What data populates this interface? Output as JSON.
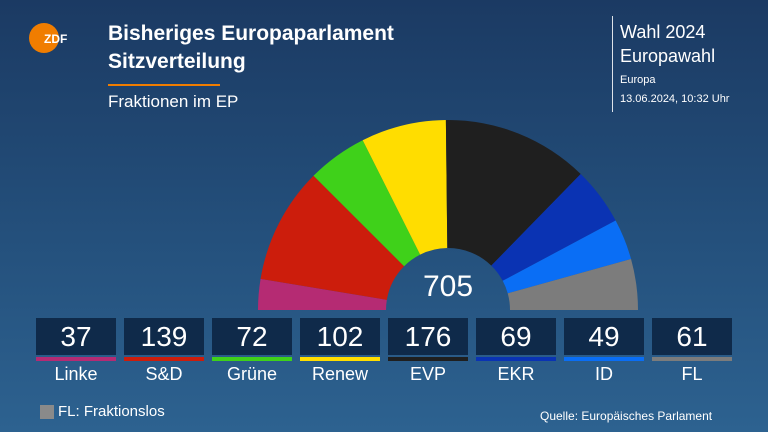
{
  "header": {
    "logo_text": "ZDF",
    "title_line1": "Bisheriges Europaparlament",
    "title_line2": "Sitzverteilung",
    "subtitle": "Fraktionen im EP",
    "election_line1": "Wahl 2024",
    "election_line2": "Europawahl",
    "region": "Europa",
    "timestamp": "13.06.2024, 10:32 Uhr"
  },
  "colors": {
    "accent": "#f07d00",
    "background": "#1b3a63",
    "box": "#0f2a4a"
  },
  "chart_data": {
    "type": "pie",
    "subtype": "parliament-semicircle",
    "title": "Bisheriges Europaparlament Sitzverteilung",
    "subtitle": "Fraktionen im EP",
    "total": 705,
    "total_label": "705",
    "categories": [
      "Linke",
      "S&D",
      "Grüne",
      "Renew",
      "EVP",
      "EKR",
      "ID",
      "FL"
    ],
    "values": [
      37,
      139,
      72,
      102,
      176,
      69,
      49,
      61
    ],
    "value_labels": [
      "37",
      "139",
      "72",
      "102",
      "176",
      "69",
      "49",
      "61"
    ],
    "colors": [
      "#b52b73",
      "#cc1d0c",
      "#3fd11a",
      "#ffdd00",
      "#1f1f1f",
      "#0a33b3",
      "#0a6ef5",
      "#7c7c7c"
    ]
  },
  "legend": {
    "text": "FL: Fraktionslos",
    "color": "#8a8a8a"
  },
  "footer": {
    "source": "Quelle: Europäisches Parlament"
  }
}
